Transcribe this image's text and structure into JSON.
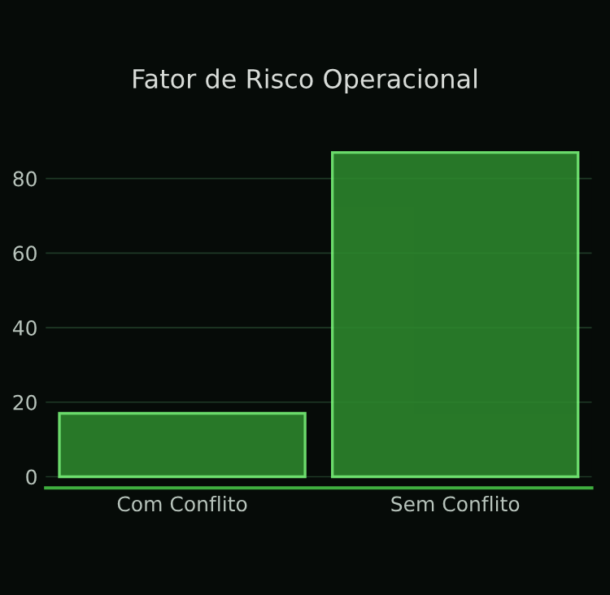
{
  "chart_data": {
    "type": "bar",
    "title": "Fator de Risco Operacional",
    "categories": [
      "Com Conflito",
      "Sem Conflito"
    ],
    "values": [
      17,
      87
    ],
    "color": "#2e8b2e",
    "ylim": [
      -3,
      88
    ],
    "yticks": [
      0,
      20,
      40,
      60,
      80
    ],
    "grid": "y"
  }
}
